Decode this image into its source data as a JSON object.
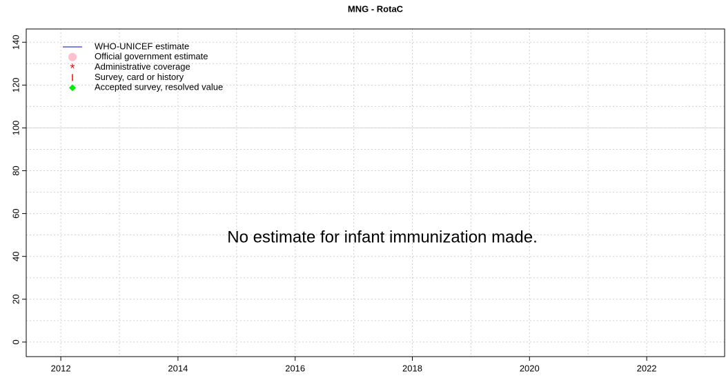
{
  "chart_data": {
    "type": "line",
    "title": "MNG  -  RotaC",
    "annotation": "No estimate for infant immunization made.",
    "x": [],
    "series": [
      {
        "name": "WHO-UNICEF estimate",
        "color": "#0000cc",
        "marker": "line",
        "values": []
      },
      {
        "name": "Official government estimate",
        "color": "#ffc0cb",
        "marker": "circle",
        "values": []
      },
      {
        "name": "Administrative coverage",
        "color": "#ff0000",
        "marker": "asterisk",
        "values": []
      },
      {
        "name": "Survey, card or history",
        "color": "#ff0000",
        "marker": "bar",
        "values": []
      },
      {
        "name": "Accepted survey, resolved value",
        "color": "#00ee00",
        "marker": "diamond",
        "values": []
      }
    ],
    "reference_line": {
      "value": 100,
      "color": "#f5c6d6"
    },
    "xlim": [
      2011.41,
      2023.33
    ],
    "xticks": [
      2012,
      2014,
      2016,
      2018,
      2020,
      2022
    ],
    "xgrid": [
      2012,
      2013,
      2014,
      2015,
      2016,
      2017,
      2018,
      2019,
      2020,
      2021,
      2022,
      2023
    ],
    "ylim": [
      -6.8,
      146.2
    ],
    "yticks": [
      0,
      20,
      40,
      60,
      80,
      100,
      120,
      140
    ],
    "ygrid": [
      0,
      10,
      20,
      30,
      40,
      50,
      60,
      70,
      80,
      90,
      100,
      110,
      120,
      130,
      140
    ],
    "grid": true,
    "legend": "top-left"
  }
}
